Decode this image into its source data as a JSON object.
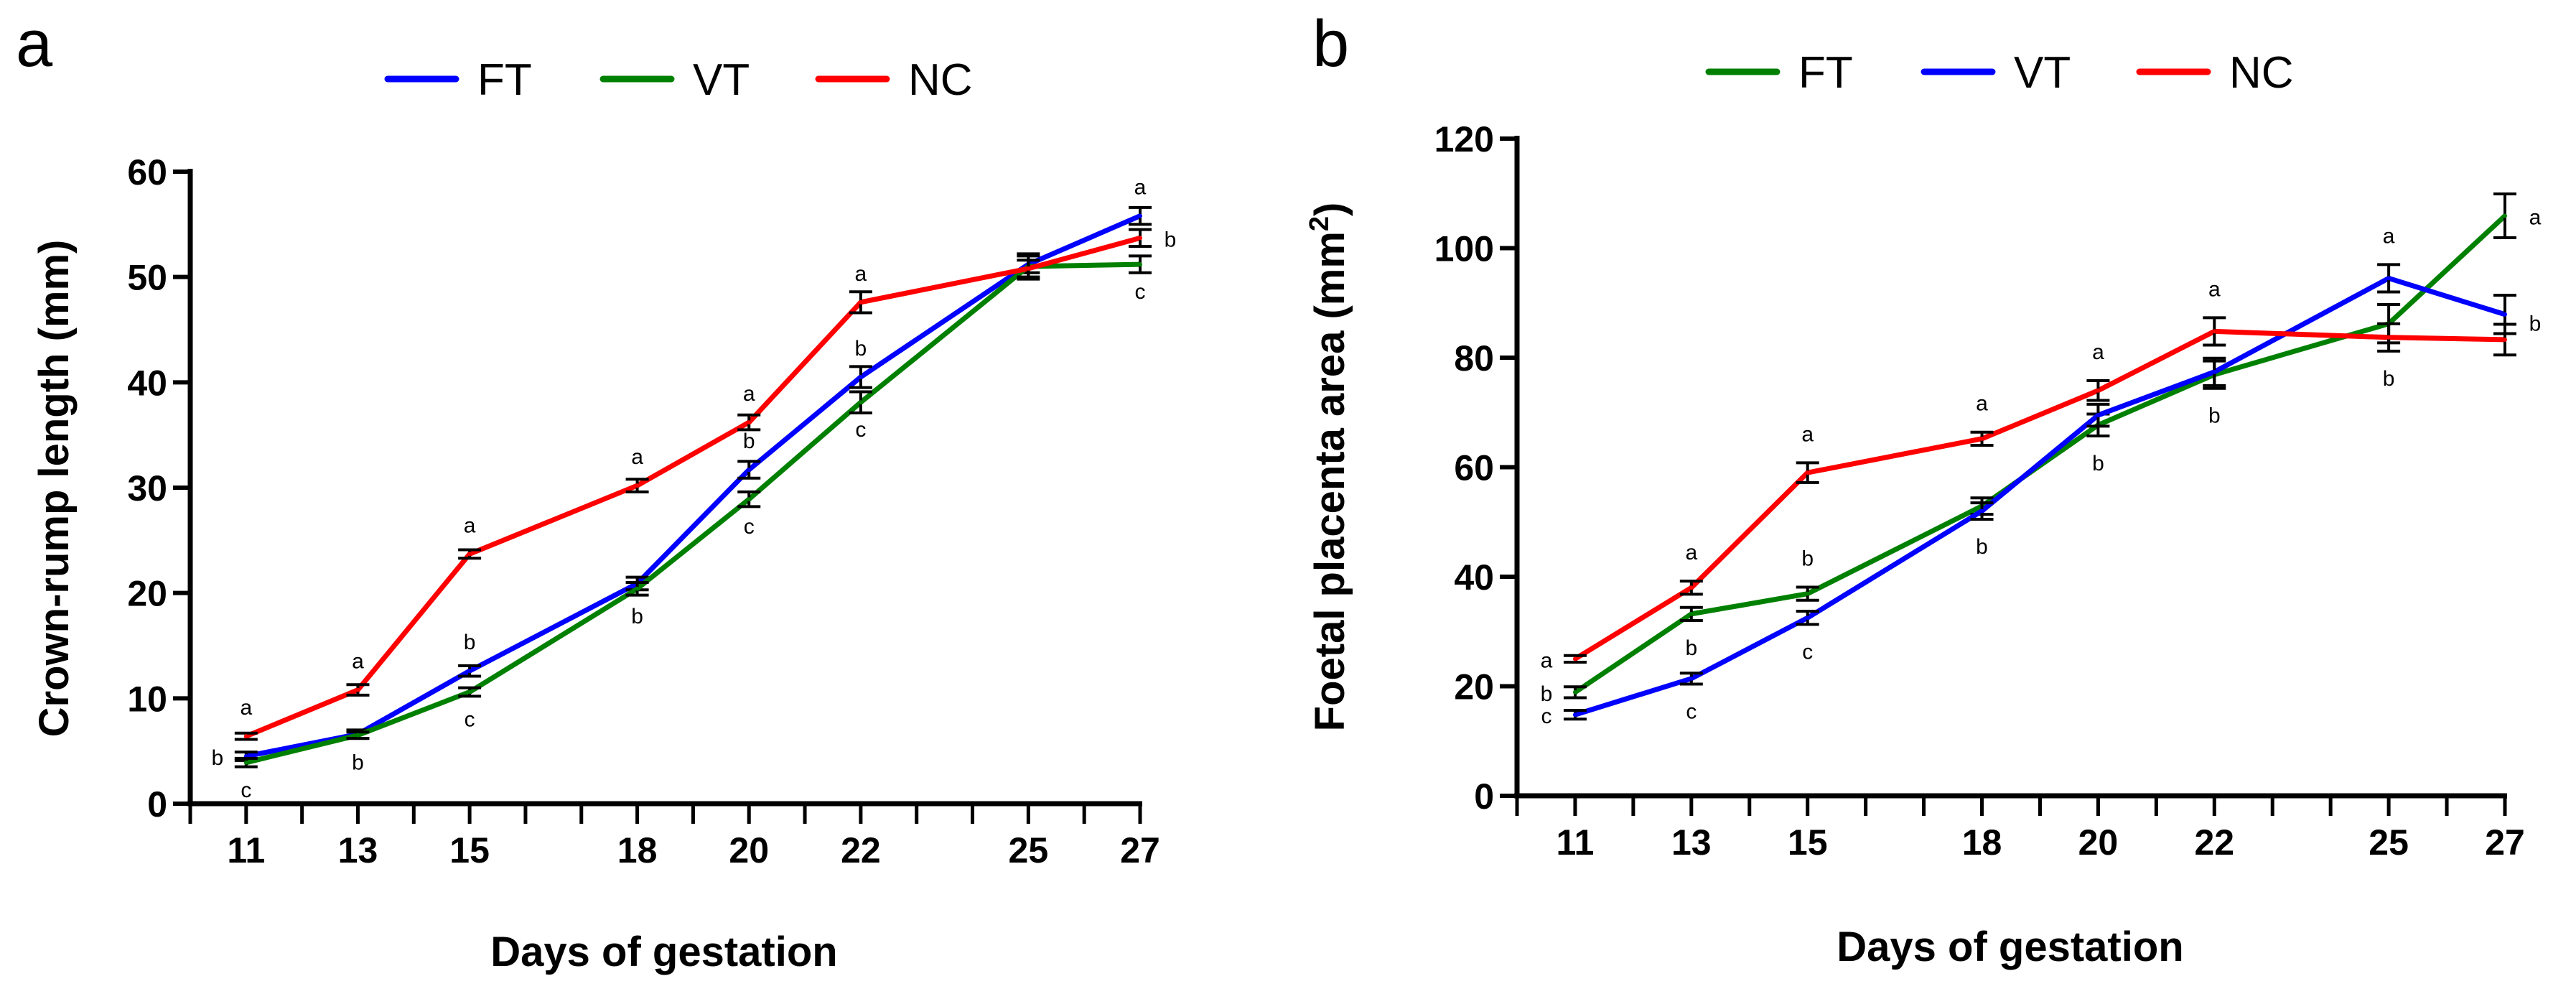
{
  "chart_data": [
    {
      "panel_label": "a",
      "type": "line",
      "title": "",
      "xlabel": "Days of gestation",
      "ylabel": "Crown-rump length (mm)",
      "xlim": [
        10,
        27
      ],
      "ylim": [
        0,
        60
      ],
      "yticks": [
        0,
        10,
        20,
        30,
        40,
        50,
        60
      ],
      "xticks": [
        11,
        13,
        15,
        18,
        20,
        22,
        25,
        27
      ],
      "legend": "top-center",
      "x": [
        11,
        13,
        15,
        18,
        20,
        22,
        25,
        27
      ],
      "series": [
        {
          "name": "FT",
          "color": "#0000ff",
          "values": [
            4.5,
            6.6,
            12.6,
            20.9,
            31.7,
            40.5,
            51.2,
            55.8
          ],
          "err": [
            0.4,
            0.4,
            0.5,
            0.6,
            0.8,
            1.0,
            0.8,
            0.8
          ]
        },
        {
          "name": "VT",
          "color": "#008000",
          "values": [
            3.9,
            6.5,
            10.6,
            20.4,
            28.9,
            38.1,
            51.0,
            51.2
          ],
          "err": [
            0.4,
            0.3,
            0.4,
            0.6,
            0.7,
            1.0,
            1.2,
            0.8
          ]
        },
        {
          "name": "NC",
          "color": "#ff0000",
          "values": [
            6.4,
            10.8,
            23.7,
            30.2,
            36.2,
            47.6,
            50.8,
            53.7
          ],
          "err": [
            0.3,
            0.5,
            0.4,
            0.6,
            0.7,
            1.0,
            0.8,
            0.8
          ]
        }
      ],
      "annotations": [
        {
          "x": 11,
          "letter": "a",
          "pos": "above",
          "ref": 6.4
        },
        {
          "x": 11,
          "letter": "b",
          "pos": "left",
          "ref": 4.5
        },
        {
          "x": 11,
          "letter": "c",
          "pos": "below",
          "ref": 3.9
        },
        {
          "x": 13,
          "letter": "a",
          "pos": "above",
          "ref": 10.8
        },
        {
          "x": 13,
          "letter": "b",
          "pos": "below",
          "ref": 6.5
        },
        {
          "x": 15,
          "letter": "a",
          "pos": "above",
          "ref": 23.7
        },
        {
          "x": 15,
          "letter": "b",
          "pos": "above",
          "ref": 12.6
        },
        {
          "x": 15,
          "letter": "c",
          "pos": "below",
          "ref": 10.6
        },
        {
          "x": 18,
          "letter": "a",
          "pos": "above",
          "ref": 30.2
        },
        {
          "x": 18,
          "letter": "b",
          "pos": "below",
          "ref": 20.4
        },
        {
          "x": 20,
          "letter": "a",
          "pos": "above",
          "ref": 36.2
        },
        {
          "x": 20,
          "letter": "b",
          "pos": "above",
          "ref": 31.7
        },
        {
          "x": 20,
          "letter": "c",
          "pos": "below",
          "ref": 28.9
        },
        {
          "x": 22,
          "letter": "a",
          "pos": "above",
          "ref": 47.6
        },
        {
          "x": 22,
          "letter": "b",
          "pos": "above",
          "ref": 40.5
        },
        {
          "x": 22,
          "letter": "c",
          "pos": "below",
          "ref": 38.1
        },
        {
          "x": 27,
          "letter": "a",
          "pos": "above",
          "ref": 55.8
        },
        {
          "x": 27,
          "letter": "b",
          "pos": "right",
          "ref": 53.7
        },
        {
          "x": 27,
          "letter": "c",
          "pos": "below",
          "ref": 51.2
        }
      ]
    },
    {
      "panel_label": "b",
      "type": "line",
      "title": "",
      "xlabel": "Days of gestation",
      "ylabel": "Foetal placenta area (mm",
      "ylabel_sup": "2",
      "ylabel_end": ")",
      "xlim": [
        10,
        27
      ],
      "ylim": [
        0,
        120
      ],
      "yticks": [
        0,
        20,
        40,
        60,
        80,
        100,
        120
      ],
      "xticks": [
        11,
        13,
        15,
        18,
        20,
        22,
        25,
        27
      ],
      "legend": "top-center",
      "x": [
        11,
        13,
        15,
        18,
        20,
        22,
        25,
        27
      ],
      "series": [
        {
          "name": "FT",
          "color": "#008000",
          "values": [
            18.9,
            33.2,
            36.9,
            52.9,
            67.7,
            76.9,
            86.2,
            105.9
          ],
          "err": [
            1.0,
            1.2,
            1.2,
            1.5,
            2.0,
            2.5,
            3.5,
            4.0
          ]
        },
        {
          "name": "VT",
          "color": "#0000ff",
          "values": [
            14.8,
            21.4,
            32.5,
            52.0,
            69.5,
            77.4,
            94.5,
            87.9
          ],
          "err": [
            0.8,
            1.0,
            1.2,
            1.5,
            2.0,
            2.5,
            2.5,
            3.5
          ]
        },
        {
          "name": "NC",
          "color": "#ff0000",
          "values": [
            25.0,
            38.0,
            59.0,
            65.2,
            74.0,
            84.8,
            83.7,
            83.3
          ],
          "err": [
            0.6,
            1.2,
            1.8,
            1.2,
            1.8,
            2.5,
            2.5,
            2.8
          ]
        }
      ],
      "annotations": [
        {
          "x": 11,
          "letter": "a",
          "pos": "left",
          "ref": 25.0
        },
        {
          "x": 11,
          "letter": "b",
          "pos": "left",
          "ref": 18.9
        },
        {
          "x": 11,
          "letter": "c",
          "pos": "left",
          "ref": 14.8
        },
        {
          "x": 13,
          "letter": "a",
          "pos": "above",
          "ref": 39.2
        },
        {
          "x": 13,
          "letter": "b",
          "pos": "below",
          "ref": 32.0
        },
        {
          "x": 13,
          "letter": "c",
          "pos": "below",
          "ref": 20.4
        },
        {
          "x": 15,
          "letter": "a",
          "pos": "above",
          "ref": 60.8
        },
        {
          "x": 15,
          "letter": "b",
          "pos": "above",
          "ref": 38.1
        },
        {
          "x": 15,
          "letter": "c",
          "pos": "below",
          "ref": 31.3
        },
        {
          "x": 18,
          "letter": "a",
          "pos": "above",
          "ref": 66.4
        },
        {
          "x": 18,
          "letter": "b",
          "pos": "below",
          "ref": 50.5
        },
        {
          "x": 20,
          "letter": "a",
          "pos": "above",
          "ref": 75.8
        },
        {
          "x": 20,
          "letter": "b",
          "pos": "below",
          "ref": 65.7
        },
        {
          "x": 22,
          "letter": "a",
          "pos": "above",
          "ref": 87.3
        },
        {
          "x": 22,
          "letter": "b",
          "pos": "below",
          "ref": 74.4
        },
        {
          "x": 25,
          "letter": "a",
          "pos": "above",
          "ref": 97.0
        },
        {
          "x": 25,
          "letter": "b",
          "pos": "below",
          "ref": 81.2
        },
        {
          "x": 27,
          "letter": "a",
          "pos": "right",
          "ref": 105.9
        },
        {
          "x": 27,
          "letter": "b",
          "pos": "right",
          "ref": 86.5
        }
      ]
    }
  ]
}
